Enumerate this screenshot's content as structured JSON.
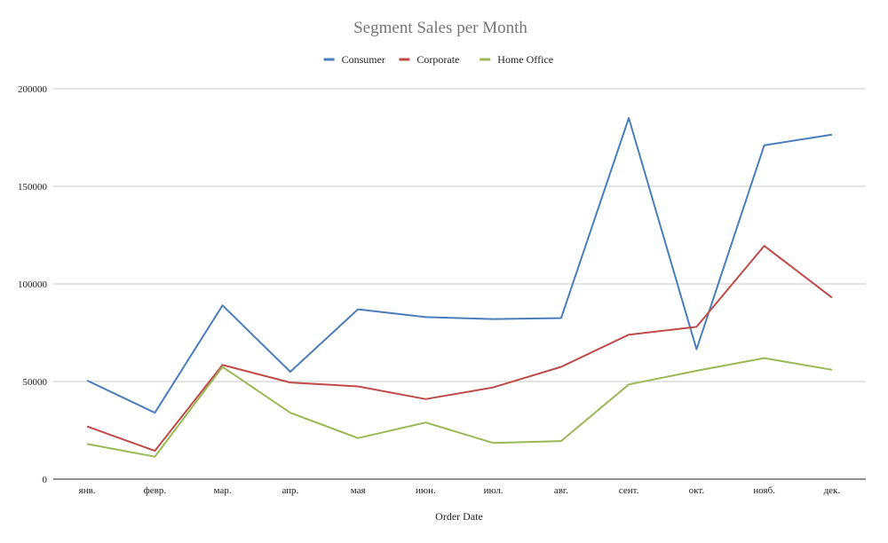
{
  "chart_data": {
    "type": "line",
    "title": "Segment Sales per Month",
    "xlabel": "Order Date",
    "ylabel": "",
    "categories": [
      "янв.",
      "февр.",
      "мар.",
      "апр.",
      "мая",
      "июн.",
      "июл.",
      "авг.",
      "сент.",
      "окт.",
      "нояб.",
      "дек."
    ],
    "ylim": [
      0,
      200000
    ],
    "yticks": [
      "0",
      "50000",
      "100000",
      "150000",
      "200000"
    ],
    "grid": true,
    "legend_position": "top",
    "series": [
      {
        "name": "Consumer",
        "color": "#4a7ebb",
        "values": [
          50500,
          34000,
          89000,
          55000,
          87000,
          83000,
          82000,
          82500,
          185000,
          66500,
          171000,
          176500
        ]
      },
      {
        "name": "Corporate",
        "color": "#be4b48",
        "values": [
          27000,
          14500,
          58500,
          49500,
          47500,
          41000,
          47000,
          57500,
          74000,
          78000,
          119500,
          93000
        ]
      },
      {
        "name": "Home Office",
        "color": "#98b954",
        "values": [
          18000,
          11500,
          57500,
          34000,
          21000,
          29000,
          18500,
          19500,
          48500,
          55500,
          62000,
          56000
        ]
      }
    ]
  }
}
